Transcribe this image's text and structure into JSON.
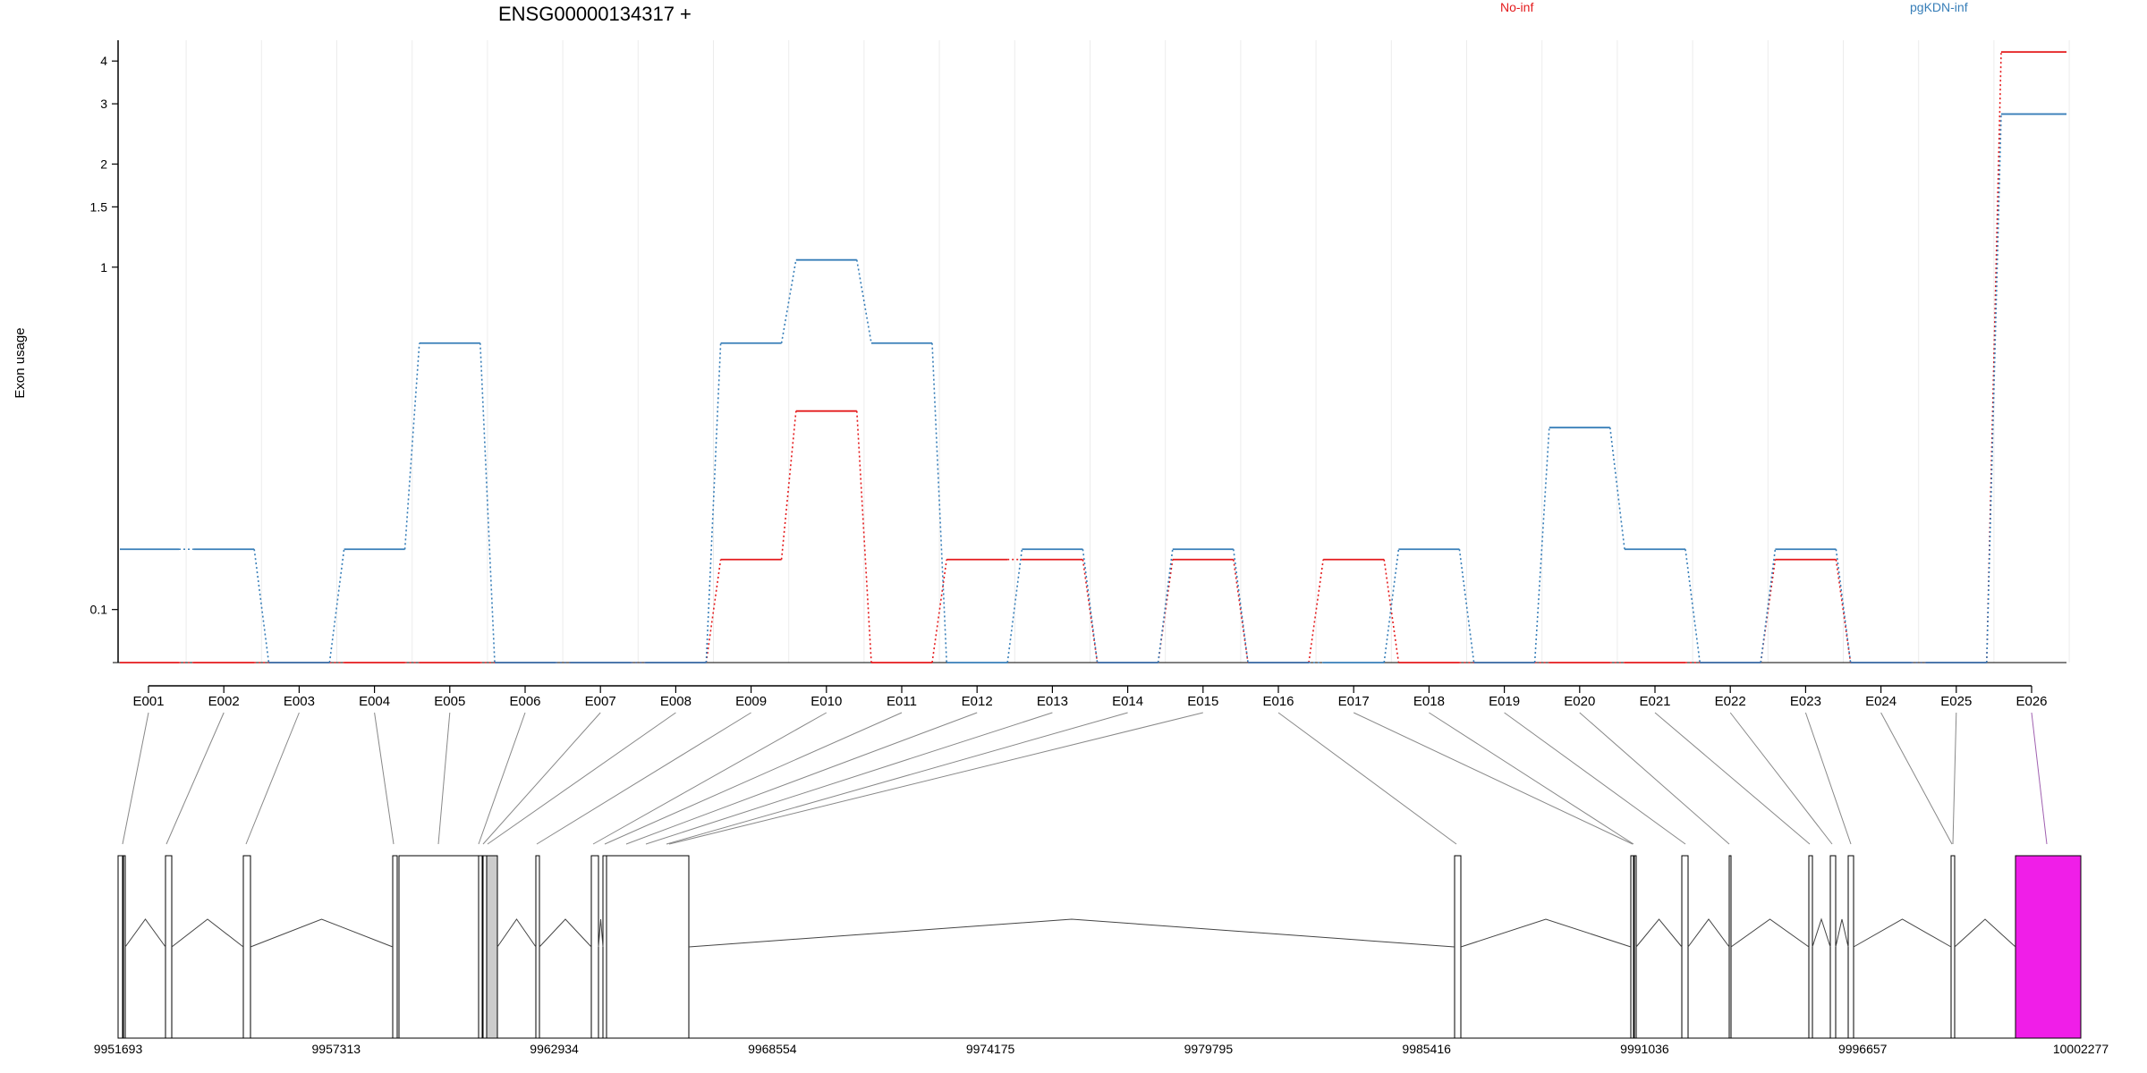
{
  "chart_data": {
    "type": "line",
    "title": "ENSG00000134317 +",
    "ylabel": "Exon usage",
    "xlabel": "",
    "y_scale": "log",
    "ylim": [
      0.07,
      4.6
    ],
    "y_ticks": [
      0.1,
      1,
      1.5,
      2,
      3,
      4
    ],
    "grid": "vertical light",
    "legend_placement": "top",
    "categories": [
      "E001",
      "E002",
      "E003",
      "E004",
      "E005",
      "E006",
      "E007",
      "E008",
      "E009",
      "E010",
      "E011",
      "E012",
      "E013",
      "E014",
      "E015",
      "E016",
      "E017",
      "E018",
      "E019",
      "E020",
      "E021",
      "E022",
      "E023",
      "E024",
      "E025",
      "E026"
    ],
    "series": [
      {
        "name": "No-inf",
        "color": "#e41a1c",
        "values": [
          0.07,
          0.07,
          0.07,
          0.07,
          0.07,
          0.07,
          0.07,
          0.07,
          0.14,
          0.38,
          0.07,
          0.14,
          0.14,
          0.07,
          0.14,
          0.07,
          0.14,
          0.07,
          0.07,
          0.07,
          0.07,
          0.07,
          0.14,
          0.07,
          0.07,
          4.25
        ]
      },
      {
        "name": "pgKDN-inf",
        "color": "#377eb8",
        "values": [
          0.15,
          0.15,
          0.07,
          0.15,
          0.6,
          0.07,
          0.07,
          0.07,
          0.6,
          1.05,
          0.6,
          0.07,
          0.15,
          0.07,
          0.15,
          0.07,
          0.07,
          0.15,
          0.07,
          0.34,
          0.15,
          0.07,
          0.15,
          0.07,
          0.07,
          2.8
        ]
      }
    ],
    "gene_model": {
      "highlight_color": "#f01ee8",
      "coordinate_ticks": [
        9951693,
        9957313,
        9962934,
        9968554,
        9974175,
        9979795,
        9985416,
        9991036,
        9996657,
        10002277
      ]
    }
  }
}
